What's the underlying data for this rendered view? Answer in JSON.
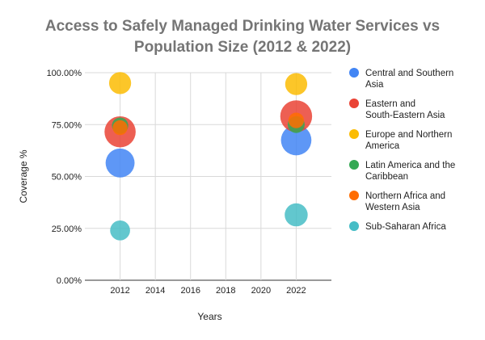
{
  "chart_data": {
    "type": "bubble",
    "title": "Access to Safely Managed Drinking Water Services vs Population Size (2012 & 2022)",
    "xlabel": "Years",
    "ylabel": "Coverage %",
    "xlim": [
      2010,
      2024
    ],
    "ylim": [
      0,
      100
    ],
    "xticks": [
      "2012",
      "2014",
      "2016",
      "2018",
      "2020",
      "2022"
    ],
    "yticks": [
      "0.00%",
      "25.00%",
      "50.00%",
      "75.00%",
      "100.00%"
    ],
    "grid": true,
    "legend_position": "right",
    "series": [
      {
        "name": "Central and Southern Asia",
        "color": "#4285F4",
        "points": [
          {
            "x": 2012,
            "y": 56.5,
            "size": 1.9
          },
          {
            "x": 2022,
            "y": 67.5,
            "size": 2.1
          }
        ]
      },
      {
        "name": "Eastern and South-Eastern Asia",
        "color": "#EA4335",
        "points": [
          {
            "x": 2012,
            "y": 71.5,
            "size": 2.2
          },
          {
            "x": 2022,
            "y": 79.0,
            "size": 2.3
          }
        ]
      },
      {
        "name": "Europe and Northern America",
        "color": "#FBBC04",
        "points": [
          {
            "x": 2012,
            "y": 95.0,
            "size": 1.1
          },
          {
            "x": 2022,
            "y": 94.5,
            "size": 1.1
          }
        ]
      },
      {
        "name": "Latin America and the Caribbean",
        "color": "#34A853",
        "points": [
          {
            "x": 2012,
            "y": 74.5,
            "size": 0.6
          },
          {
            "x": 2022,
            "y": 75.0,
            "size": 0.65
          }
        ]
      },
      {
        "name": "Northern Africa and Western Asia",
        "color": "#FF6D01",
        "points": [
          {
            "x": 2012,
            "y": 73.5,
            "size": 0.5
          },
          {
            "x": 2022,
            "y": 77.0,
            "size": 0.55
          }
        ]
      },
      {
        "name": "Sub-Saharan Africa",
        "color": "#46BDC6",
        "points": [
          {
            "x": 2012,
            "y": 24.0,
            "size": 0.9
          },
          {
            "x": 2022,
            "y": 31.5,
            "size": 1.2
          }
        ]
      }
    ]
  }
}
